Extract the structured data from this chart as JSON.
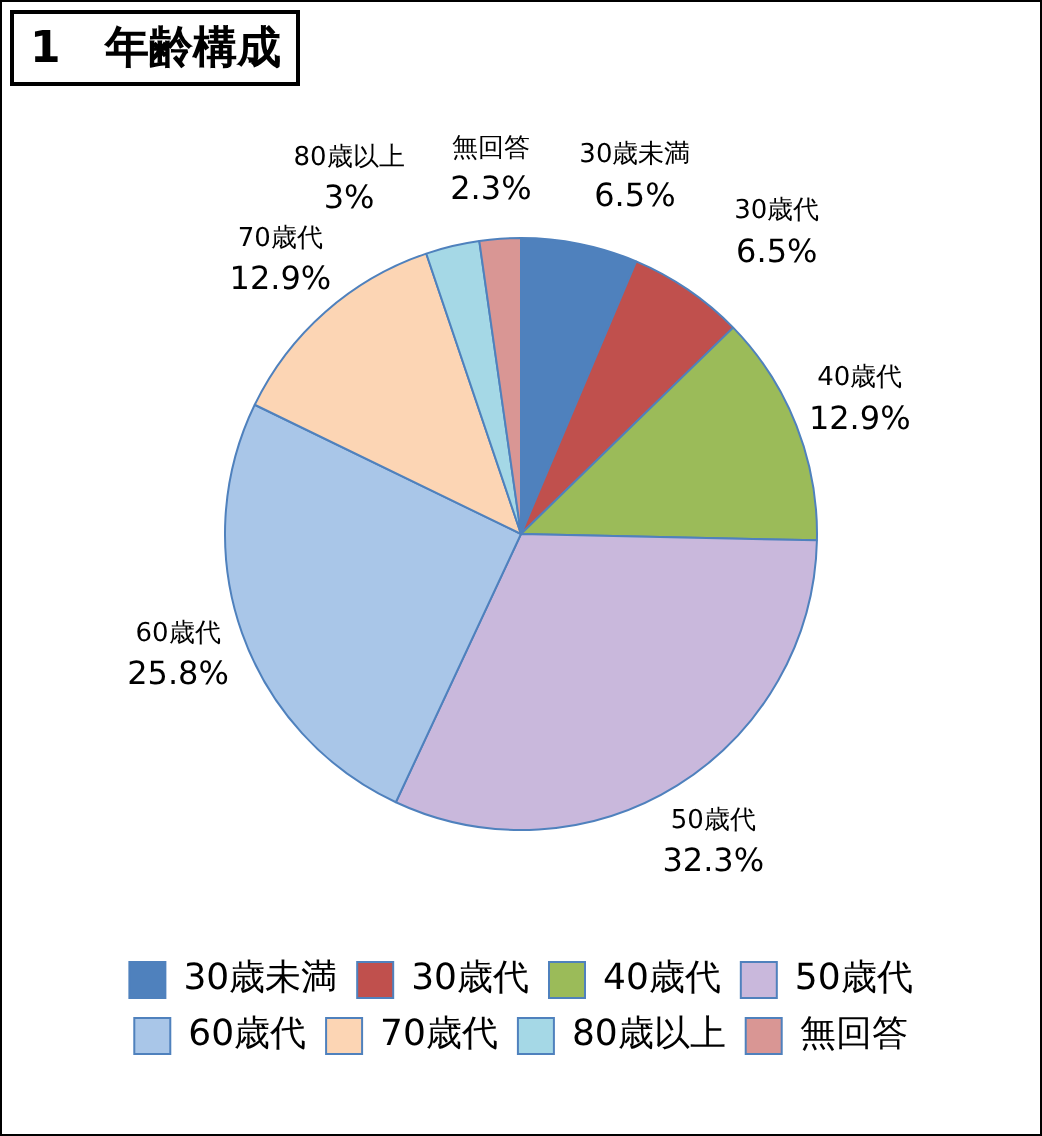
{
  "chart_data": {
    "type": "pie",
    "title": "1　年齢構成",
    "categories": [
      "30歳未満",
      "30歳代",
      "40歳代",
      "50歳代",
      "60歳代",
      "70歳代",
      "80歳以上",
      "無回答"
    ],
    "values": [
      6.5,
      6.5,
      12.9,
      32.3,
      25.8,
      12.9,
      3,
      2.3
    ],
    "value_labels": [
      "6.5%",
      "6.5%",
      "12.9%",
      "32.3%",
      "25.8%",
      "12.9%",
      "3%",
      "2.3%"
    ],
    "colors": [
      "#4f81bd",
      "#c0504d",
      "#9bbb59",
      "#c9b8dc",
      "#a9c6e8",
      "#fcd5b4",
      "#a5d8e6",
      "#d99694"
    ],
    "legend": "bottom"
  }
}
